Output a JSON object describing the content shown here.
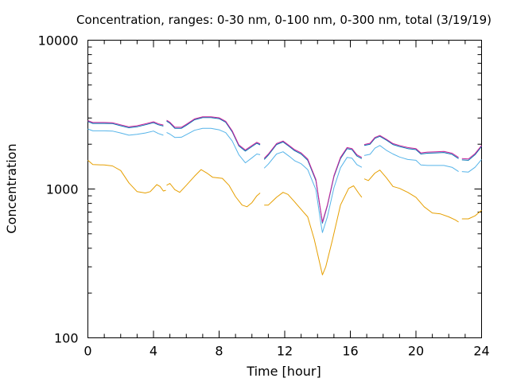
{
  "chart_data": {
    "type": "line",
    "title": "Concentration, ranges: 0-30 nm, 0-100 nm, 0-300 nm, total (3/19/19)",
    "xlabel": "Time [hour]",
    "ylabel": "Concentration",
    "xlim": [
      0,
      24
    ],
    "ylim": [
      100,
      10000
    ],
    "yscale": "log",
    "grid": false,
    "legend": "none",
    "x_ticks": [
      0,
      4,
      8,
      12,
      16,
      20,
      24
    ],
    "x_tick_labels": [
      "0",
      "4",
      "8",
      "12",
      "16",
      "20",
      "24"
    ],
    "y_ticks": [
      100,
      1000,
      10000
    ],
    "y_tick_labels": [
      "100",
      "1000",
      "10000"
    ],
    "series": [
      {
        "color": "#e69f00",
        "points": [
          [
            0,
            1560
          ],
          [
            0.3,
            1460
          ],
          [
            1.0,
            1450
          ],
          [
            1.5,
            1430
          ],
          [
            2.0,
            1330
          ],
          [
            2.5,
            1100
          ],
          [
            3.0,
            960
          ],
          [
            3.5,
            940
          ],
          [
            3.8,
            960
          ],
          [
            4.2,
            1070
          ],
          [
            4.4,
            1040
          ],
          [
            4.6,
            970
          ],
          [
            4.75,
            980
          ],
          [
            null,
            null
          ],
          [
            4.8,
            1060
          ],
          [
            5.0,
            1090
          ],
          [
            5.3,
            990
          ],
          [
            5.6,
            950
          ],
          [
            6.0,
            1060
          ],
          [
            6.5,
            1220
          ],
          [
            6.9,
            1350
          ],
          [
            7.3,
            1270
          ],
          [
            7.6,
            1200
          ],
          [
            8.2,
            1180
          ],
          [
            8.6,
            1060
          ],
          [
            9.0,
            890
          ],
          [
            9.4,
            780
          ],
          [
            9.7,
            760
          ],
          [
            10.0,
            810
          ],
          [
            10.3,
            900
          ],
          [
            10.5,
            940
          ],
          [
            null,
            null
          ],
          [
            10.75,
            780
          ],
          [
            11.0,
            780
          ],
          [
            11.5,
            880
          ],
          [
            11.9,
            950
          ],
          [
            12.2,
            920
          ],
          [
            12.6,
            820
          ],
          [
            13.0,
            730
          ],
          [
            13.4,
            650
          ],
          [
            13.8,
            460
          ],
          [
            14.1,
            330
          ],
          [
            14.3,
            265
          ],
          [
            14.5,
            300
          ],
          [
            14.9,
            450
          ],
          [
            15.4,
            780
          ],
          [
            15.9,
            1010
          ],
          [
            16.2,
            1050
          ],
          [
            16.5,
            940
          ],
          [
            16.7,
            880
          ],
          [
            null,
            null
          ],
          [
            16.85,
            1170
          ],
          [
            17.1,
            1140
          ],
          [
            17.5,
            1280
          ],
          [
            17.8,
            1340
          ],
          [
            18.2,
            1190
          ],
          [
            18.6,
            1040
          ],
          [
            19.0,
            1010
          ],
          [
            19.5,
            950
          ],
          [
            20.0,
            880
          ],
          [
            20.5,
            760
          ],
          [
            21.0,
            690
          ],
          [
            21.5,
            680
          ],
          [
            22.0,
            650
          ],
          [
            22.4,
            620
          ],
          [
            22.6,
            600
          ],
          [
            null,
            null
          ],
          [
            22.8,
            630
          ],
          [
            23.2,
            630
          ],
          [
            23.6,
            660
          ],
          [
            24.0,
            720
          ]
        ]
      },
      {
        "color": "#56b4e9",
        "points": [
          [
            0,
            2530
          ],
          [
            0.3,
            2460
          ],
          [
            1.0,
            2460
          ],
          [
            1.5,
            2450
          ],
          [
            2.0,
            2380
          ],
          [
            2.5,
            2300
          ],
          [
            3.0,
            2330
          ],
          [
            3.5,
            2380
          ],
          [
            4.0,
            2450
          ],
          [
            4.3,
            2360
          ],
          [
            4.6,
            2300
          ],
          [
            null,
            null
          ],
          [
            4.8,
            2400
          ],
          [
            5.0,
            2340
          ],
          [
            5.3,
            2220
          ],
          [
            5.7,
            2230
          ],
          [
            6.0,
            2320
          ],
          [
            6.5,
            2480
          ],
          [
            7.0,
            2560
          ],
          [
            7.5,
            2560
          ],
          [
            8.0,
            2500
          ],
          [
            8.4,
            2390
          ],
          [
            8.8,
            2100
          ],
          [
            9.2,
            1700
          ],
          [
            9.6,
            1500
          ],
          [
            10.0,
            1620
          ],
          [
            10.3,
            1720
          ],
          [
            10.5,
            1700
          ],
          [
            null,
            null
          ],
          [
            10.75,
            1380
          ],
          [
            11.0,
            1470
          ],
          [
            11.5,
            1720
          ],
          [
            11.9,
            1780
          ],
          [
            12.3,
            1650
          ],
          [
            12.6,
            1550
          ],
          [
            13.0,
            1480
          ],
          [
            13.4,
            1350
          ],
          [
            13.9,
            990
          ],
          [
            14.2,
            590
          ],
          [
            14.3,
            510
          ],
          [
            14.6,
            650
          ],
          [
            15.0,
            1020
          ],
          [
            15.4,
            1390
          ],
          [
            15.8,
            1630
          ],
          [
            16.1,
            1610
          ],
          [
            16.4,
            1460
          ],
          [
            16.7,
            1400
          ],
          [
            null,
            null
          ],
          [
            16.85,
            1680
          ],
          [
            17.2,
            1710
          ],
          [
            17.5,
            1880
          ],
          [
            17.8,
            1960
          ],
          [
            18.2,
            1820
          ],
          [
            18.6,
            1720
          ],
          [
            19.0,
            1640
          ],
          [
            19.5,
            1580
          ],
          [
            20.0,
            1560
          ],
          [
            20.3,
            1450
          ],
          [
            20.7,
            1440
          ],
          [
            21.2,
            1440
          ],
          [
            21.7,
            1440
          ],
          [
            22.2,
            1400
          ],
          [
            22.6,
            1310
          ],
          [
            null,
            null
          ],
          [
            22.8,
            1310
          ],
          [
            23.2,
            1300
          ],
          [
            23.6,
            1400
          ],
          [
            24.0,
            1580
          ]
        ]
      },
      {
        "color": "#0072b2",
        "points": [
          [
            0,
            2840
          ],
          [
            0.3,
            2760
          ],
          [
            1.0,
            2760
          ],
          [
            1.5,
            2750
          ],
          [
            2.0,
            2660
          ],
          [
            2.5,
            2580
          ],
          [
            3.0,
            2620
          ],
          [
            3.5,
            2700
          ],
          [
            4.0,
            2790
          ],
          [
            4.3,
            2700
          ],
          [
            4.6,
            2650
          ],
          [
            null,
            null
          ],
          [
            4.8,
            2860
          ],
          [
            5.0,
            2770
          ],
          [
            5.3,
            2560
          ],
          [
            5.7,
            2560
          ],
          [
            6.0,
            2680
          ],
          [
            6.5,
            2920
          ],
          [
            7.0,
            3020
          ],
          [
            7.5,
            3020
          ],
          [
            8.0,
            2970
          ],
          [
            8.4,
            2810
          ],
          [
            8.8,
            2420
          ],
          [
            9.2,
            1950
          ],
          [
            9.6,
            1800
          ],
          [
            10.0,
            1930
          ],
          [
            10.3,
            2030
          ],
          [
            10.5,
            1980
          ],
          [
            null,
            null
          ],
          [
            10.75,
            1580
          ],
          [
            11.0,
            1690
          ],
          [
            11.5,
            1990
          ],
          [
            11.9,
            2070
          ],
          [
            12.3,
            1920
          ],
          [
            12.6,
            1810
          ],
          [
            13.0,
            1720
          ],
          [
            13.4,
            1560
          ],
          [
            13.9,
            1140
          ],
          [
            14.2,
            690
          ],
          [
            14.3,
            590
          ],
          [
            14.6,
            770
          ],
          [
            15.0,
            1210
          ],
          [
            15.4,
            1600
          ],
          [
            15.8,
            1870
          ],
          [
            16.1,
            1840
          ],
          [
            16.4,
            1670
          ],
          [
            16.7,
            1600
          ],
          [
            null,
            null
          ],
          [
            16.85,
            1960
          ],
          [
            17.2,
            2000
          ],
          [
            17.5,
            2190
          ],
          [
            17.8,
            2260
          ],
          [
            18.2,
            2130
          ],
          [
            18.6,
            1990
          ],
          [
            19.0,
            1930
          ],
          [
            19.5,
            1870
          ],
          [
            20.0,
            1840
          ],
          [
            20.3,
            1720
          ],
          [
            20.7,
            1740
          ],
          [
            21.2,
            1750
          ],
          [
            21.7,
            1760
          ],
          [
            22.2,
            1710
          ],
          [
            22.6,
            1600
          ],
          [
            null,
            null
          ],
          [
            22.8,
            1570
          ],
          [
            23.2,
            1560
          ],
          [
            23.6,
            1700
          ],
          [
            24.0,
            1930
          ]
        ]
      },
      {
        "color": "#cc2299",
        "points": [
          [
            0,
            2880
          ],
          [
            0.3,
            2800
          ],
          [
            1.0,
            2800
          ],
          [
            1.5,
            2790
          ],
          [
            2.0,
            2700
          ],
          [
            2.5,
            2620
          ],
          [
            3.0,
            2660
          ],
          [
            3.5,
            2740
          ],
          [
            4.0,
            2830
          ],
          [
            4.3,
            2740
          ],
          [
            4.6,
            2690
          ],
          [
            null,
            null
          ],
          [
            4.8,
            2900
          ],
          [
            5.0,
            2810
          ],
          [
            5.3,
            2600
          ],
          [
            5.7,
            2600
          ],
          [
            6.0,
            2720
          ],
          [
            6.5,
            2960
          ],
          [
            7.0,
            3060
          ],
          [
            7.5,
            3060
          ],
          [
            8.0,
            3010
          ],
          [
            8.4,
            2850
          ],
          [
            8.8,
            2460
          ],
          [
            9.2,
            1980
          ],
          [
            9.6,
            1830
          ],
          [
            10.0,
            1960
          ],
          [
            10.3,
            2060
          ],
          [
            10.5,
            2010
          ],
          [
            null,
            null
          ],
          [
            10.75,
            1610
          ],
          [
            11.0,
            1720
          ],
          [
            11.5,
            2020
          ],
          [
            11.9,
            2100
          ],
          [
            12.3,
            1950
          ],
          [
            12.6,
            1840
          ],
          [
            13.0,
            1750
          ],
          [
            13.4,
            1590
          ],
          [
            13.9,
            1160
          ],
          [
            14.2,
            700
          ],
          [
            14.3,
            600
          ],
          [
            14.6,
            780
          ],
          [
            15.0,
            1230
          ],
          [
            15.4,
            1630
          ],
          [
            15.8,
            1900
          ],
          [
            16.1,
            1870
          ],
          [
            16.4,
            1700
          ],
          [
            16.7,
            1630
          ],
          [
            null,
            null
          ],
          [
            16.85,
            1990
          ],
          [
            17.2,
            2030
          ],
          [
            17.5,
            2220
          ],
          [
            17.8,
            2290
          ],
          [
            18.2,
            2160
          ],
          [
            18.6,
            2020
          ],
          [
            19.0,
            1960
          ],
          [
            19.5,
            1900
          ],
          [
            20.0,
            1870
          ],
          [
            20.3,
            1750
          ],
          [
            20.7,
            1770
          ],
          [
            21.2,
            1780
          ],
          [
            21.7,
            1790
          ],
          [
            22.2,
            1740
          ],
          [
            22.6,
            1630
          ],
          [
            null,
            null
          ],
          [
            22.8,
            1600
          ],
          [
            23.2,
            1590
          ],
          [
            23.6,
            1730
          ],
          [
            24.0,
            1960
          ]
        ]
      }
    ]
  }
}
